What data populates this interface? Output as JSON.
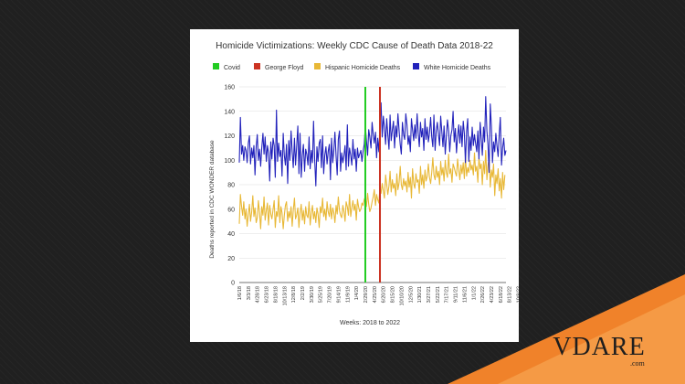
{
  "chart_data": {
    "type": "line",
    "title": "Homicide Victimizations: Weekly CDC Cause of Death Data 2018-22",
    "xlabel": "Weeks: 2018 to 2022",
    "ylabel": "Deaths reported in CDC WONDER database",
    "ylim": [
      0,
      160
    ],
    "yticks": [
      0,
      20,
      40,
      60,
      80,
      100,
      120,
      140,
      160
    ],
    "grid": true,
    "legend_position": "top",
    "legend": [
      {
        "label": "Covid",
        "color": "#22cc22"
      },
      {
        "label": "George Floyd",
        "color": "#cc3322"
      },
      {
        "label": "Hispanic Homicide Deaths",
        "color": "#e8b836"
      },
      {
        "label": "White Homicide Deaths",
        "color": "#2222bb"
      }
    ],
    "x_tick_labels": [
      "1/6/18",
      "3/3/18",
      "4/28/18",
      "6/23/18",
      "8/18/18",
      "10/13/18",
      "12/8/18",
      "2/2/19",
      "3/30/19",
      "5/25/19",
      "7/20/19",
      "9/14/19",
      "11/9/19",
      "1/4/20",
      "2/29/20",
      "4/25/20",
      "6/20/20",
      "8/15/20",
      "10/10/20",
      "12/5/20",
      "1/30/21",
      "3/27/21",
      "5/22/21",
      "7/17/21",
      "9/11/21",
      "11/6/21",
      "1/1/22",
      "2/26/22",
      "4/23/22",
      "6/18/22",
      "8/13/22",
      "10/8/22",
      "12/3/22"
    ],
    "markers": [
      {
        "label": "Covid",
        "x": "2/29/20",
        "week_index": 112,
        "color": "#22cc22"
      },
      {
        "label": "George Floyd",
        "x": "5/30/20",
        "week_index": 125,
        "color": "#cc3322"
      }
    ],
    "series": [
      {
        "name": "White Homicide Deaths",
        "color": "#2222bb",
        "values": [
          98,
          135,
          105,
          112,
          100,
          111,
          108,
          98,
          114,
          120,
          97,
          110,
          102,
          112,
          88,
          111,
          121,
          100,
          109,
          95,
          110,
          122,
          105,
          119,
          99,
          112,
          106,
          83,
          115,
          101,
          118,
          112,
          86,
          141,
          99,
          114,
          103,
          108,
          87,
          122,
          104,
          96,
          113,
          81,
          116,
          100,
          124,
          107,
          94,
          118,
          96,
          111,
          128,
          89,
          122,
          86,
          104,
          113,
          91,
          109,
          105,
          96,
          119,
          93,
          108,
          98,
          132,
          101,
          79,
          111,
          99,
          114,
          117,
          94,
          120,
          89,
          104,
          111,
          97,
          107,
          113,
          84,
          118,
          98,
          108,
          123,
          103,
          88,
          117,
          124,
          91,
          106,
          98,
          104,
          112,
          92,
          129,
          95,
          110,
          104,
          96,
          117,
          101,
          109,
          91,
          110,
          102,
          105,
          108,
          99,
          107,
          113,
          128,
          116,
          104,
          125,
          119,
          110,
          131,
          121,
          114,
          123,
          102,
          118,
          107,
          128,
          147,
          119,
          136,
          127,
          113,
          134,
          121,
          109,
          137,
          116,
          125,
          132,
          110,
          128,
          119,
          138,
          124,
          113,
          105,
          131,
          121,
          117,
          138,
          129,
          113,
          120,
          107,
          134,
          125,
          116,
          129,
          118,
          138,
          122,
          111,
          131,
          119,
          126,
          108,
          134,
          117,
          127,
          115,
          122,
          135,
          119,
          111,
          137,
          108,
          124,
          131,
          121,
          112,
          136,
          123,
          111,
          128,
          105,
          119,
          133,
          124,
          107,
          120,
          125,
          140,
          115,
          126,
          106,
          119,
          129,
          114,
          128,
          111,
          132,
          122,
          98,
          124,
          134,
          99,
          119,
          108,
          127,
          112,
          121,
          114,
          107,
          124,
          101,
          131,
          118,
          104,
          127,
          115,
          152,
          124,
          113,
          90,
          146,
          128,
          98,
          115,
          107,
          122,
          112,
          103,
          121,
          135,
          96,
          110,
          118,
          104,
          108
        ]
      },
      {
        "name": "Hispanic Homicide Deaths",
        "color": "#e8b836",
        "values": [
          48,
          72,
          62,
          55,
          66,
          52,
          60,
          46,
          56,
          64,
          50,
          58,
          71,
          54,
          61,
          49,
          53,
          67,
          57,
          44,
          62,
          55,
          70,
          51,
          59,
          65,
          47,
          63,
          56,
          52,
          60,
          67,
          45,
          58,
          54,
          71,
          49,
          62,
          57,
          44,
          55,
          63,
          66,
          50,
          58,
          53,
          62,
          46,
          59,
          69,
          52,
          55,
          61,
          45,
          57,
          64,
          51,
          59,
          48,
          62,
          55,
          53,
          66,
          47,
          57,
          63,
          52,
          58,
          49,
          61,
          56,
          45,
          62,
          57,
          69,
          54,
          60,
          51,
          66,
          58,
          54,
          64,
          52,
          61,
          57,
          49,
          63,
          56,
          70,
          59,
          55,
          53,
          63,
          58,
          50,
          66,
          62,
          55,
          72,
          54,
          61,
          67,
          59,
          64,
          51,
          68,
          62,
          58,
          60,
          65,
          63,
          68,
          70,
          62,
          73,
          64,
          58,
          61,
          66,
          70,
          76,
          63,
          72,
          68,
          65,
          78,
          73,
          81,
          75,
          69,
          88,
          80,
          72,
          79,
          91,
          74,
          84,
          77,
          81,
          71,
          89,
          76,
          82,
          95,
          80,
          76,
          85,
          79,
          83,
          74,
          90,
          78,
          86,
          69,
          93,
          81,
          77,
          89,
          82,
          84,
          73,
          95,
          80,
          88,
          77,
          92,
          83,
          87,
          97,
          86,
          81,
          90,
          102,
          88,
          84,
          95,
          86,
          91,
          80,
          99,
          88,
          94,
          83,
          100,
          90,
          86,
          105,
          89,
          93,
          82,
          97,
          94,
          90,
          87,
          101,
          92,
          84,
          96,
          89,
          98,
          85,
          103,
          87,
          94,
          90,
          100,
          92,
          96,
          88,
          106,
          91,
          95,
          82,
          102,
          93,
          97,
          80,
          99,
          89,
          108,
          84,
          96,
          101,
          78,
          92,
          86,
          97,
          71,
          88,
          81,
          93,
          75,
          85,
          69,
          90,
          76,
          88
        ]
      }
    ]
  },
  "brand": {
    "name": "VDARE",
    "domain": ".com"
  }
}
